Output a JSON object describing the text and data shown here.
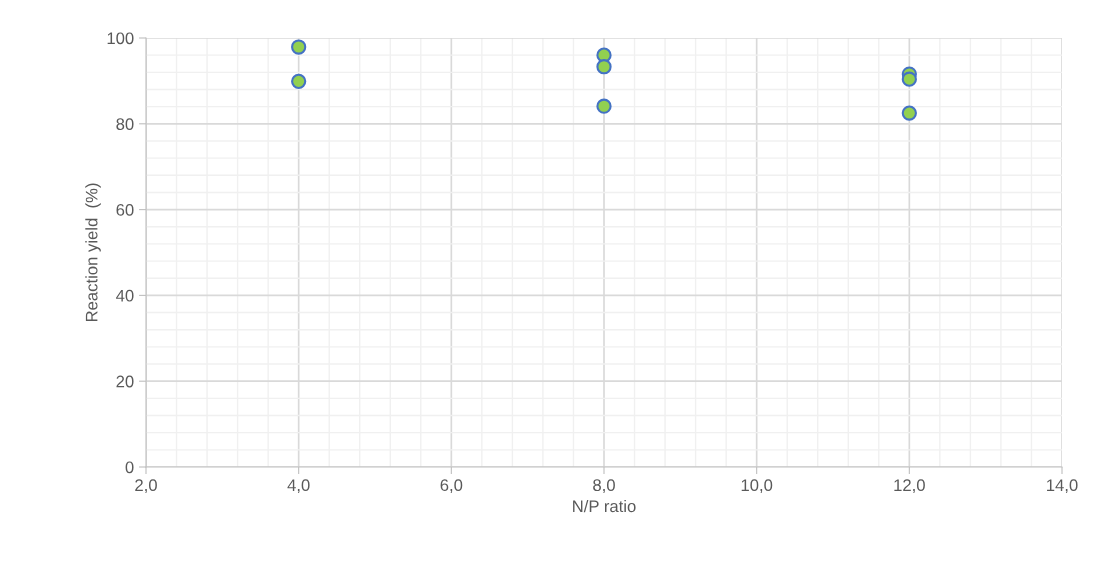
{
  "chart_data": {
    "type": "scatter",
    "xlabel": "N/P ratio",
    "ylabel": "Reaction yield  (%)",
    "x": [
      4,
      4,
      8,
      8,
      8,
      12,
      12,
      12
    ],
    "series": [
      {
        "color": "#92d050",
        "values": [
          97.9,
          89.9,
          96.0,
          93.3,
          84.1,
          91.6,
          90.4,
          82.5
        ]
      }
    ],
    "xlim": [
      2,
      14
    ],
    "ylim": [
      0,
      100
    ],
    "xticks": [
      {
        "value": 2,
        "label": "2,0"
      },
      {
        "value": 4,
        "label": "4,0"
      },
      {
        "value": 6,
        "label": "6,0"
      },
      {
        "value": 8,
        "label": "8,0"
      },
      {
        "value": 10,
        "label": "10,0"
      },
      {
        "value": 12,
        "label": "12,0"
      },
      {
        "value": 14,
        "label": "14,0"
      }
    ],
    "yticks": [
      0,
      20,
      40,
      60,
      80,
      100
    ],
    "grid": true,
    "marker": "circle"
  }
}
